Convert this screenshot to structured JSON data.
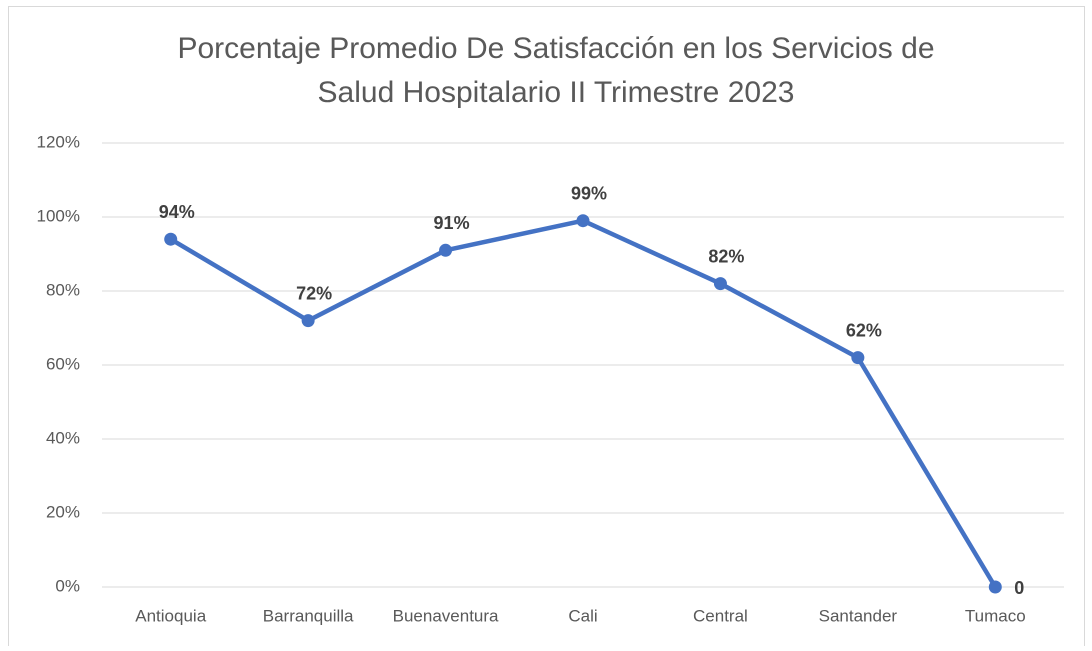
{
  "chart_data": {
    "type": "line",
    "title": [
      "Porcentaje Promedio De Satisfacción en los Servicios de",
      "Salud Hospitalario II Trimestre 2023"
    ],
    "categories": [
      "Antioquia",
      "Barranquilla",
      "Buenaventura",
      "Cali",
      "Central",
      "Santander",
      "Tumaco"
    ],
    "values": [
      94,
      72,
      91,
      99,
      82,
      62,
      0
    ],
    "value_labels": [
      "94%",
      "72%",
      "91%",
      "99%",
      "82%",
      "62%",
      "0"
    ],
    "color": "#4472c4",
    "ylim": [
      0,
      120
    ],
    "yticks": [
      {
        "value": 0,
        "label": "0%"
      },
      {
        "value": 20,
        "label": "20%"
      },
      {
        "value": 40,
        "label": "40%"
      },
      {
        "value": 60,
        "label": "60%"
      },
      {
        "value": 80,
        "label": "80%"
      },
      {
        "value": 100,
        "label": "100%"
      },
      {
        "value": 120,
        "label": "120%"
      }
    ],
    "grid": true
  }
}
